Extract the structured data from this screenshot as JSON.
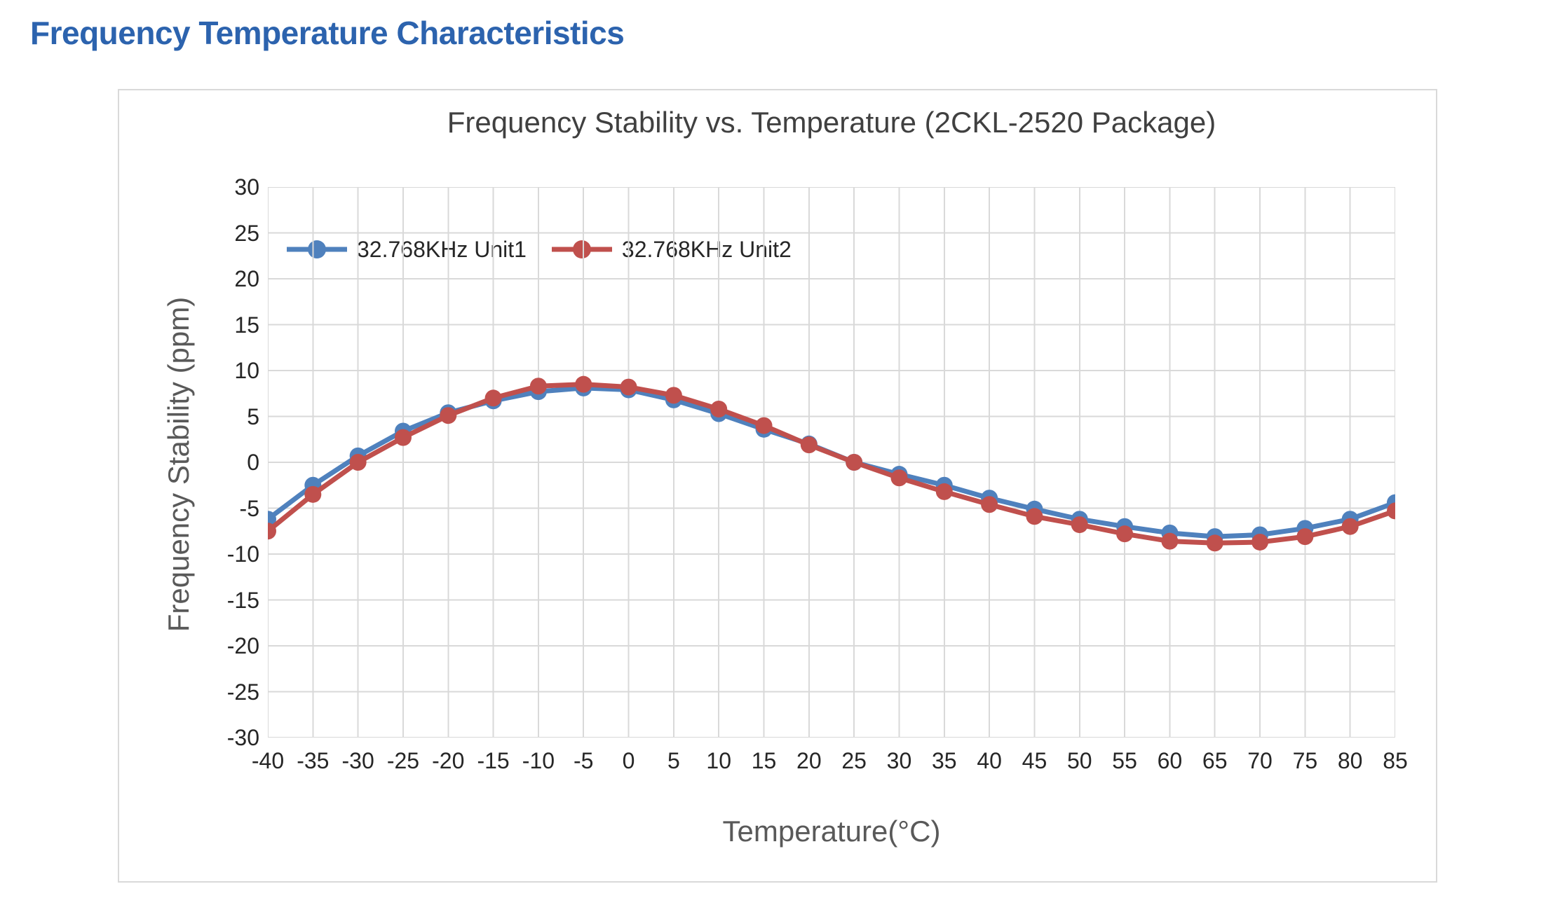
{
  "page": {
    "heading": "Frequency Temperature Characteristics"
  },
  "colors": {
    "heading": "#2C63AE",
    "card_border": "#D9D9D9",
    "grid": "#D9D9D9",
    "title_text": "#404040",
    "axis_title_text": "#595959",
    "tick_text": "#262626",
    "series_unit1": "#4F81BD",
    "series_unit2": "#C0504D"
  },
  "chart_data": {
    "type": "line",
    "title": "Frequency Stability vs. Temperature (2CKL-2520 Package)",
    "xlabel": "Temperature(°C)",
    "ylabel": "Frequency Stability (ppm)",
    "x": [
      -40,
      -35,
      -30,
      -25,
      -20,
      -15,
      -10,
      -5,
      0,
      5,
      10,
      15,
      20,
      25,
      30,
      35,
      40,
      45,
      50,
      55,
      60,
      65,
      70,
      75,
      80,
      85
    ],
    "xlim": [
      -40,
      85
    ],
    "ylim": [
      -30,
      30
    ],
    "ytick_step": 5,
    "grid": true,
    "legend_position": "inside-top-left",
    "marker": "circle",
    "series": [
      {
        "name": "32.768KHz Unit1",
        "color": "#4F81BD",
        "values": [
          -6.2,
          -2.5,
          0.7,
          3.4,
          5.4,
          6.7,
          7.7,
          8.1,
          7.9,
          6.8,
          5.3,
          3.6,
          2.0,
          0.0,
          -1.3,
          -2.5,
          -3.9,
          -5.1,
          -6.2,
          -7.0,
          -7.7,
          -8.1,
          -7.9,
          -7.2,
          -6.2,
          -4.4
        ]
      },
      {
        "name": "32.768KHz Unit2",
        "color": "#C0504D",
        "values": [
          -7.5,
          -3.5,
          0.0,
          2.7,
          5.1,
          7.0,
          8.3,
          8.5,
          8.2,
          7.3,
          5.8,
          4.0,
          1.9,
          0.0,
          -1.7,
          -3.2,
          -4.6,
          -5.9,
          -6.8,
          -7.8,
          -8.6,
          -8.8,
          -8.7,
          -8.1,
          -7.0,
          -5.3
        ]
      }
    ]
  }
}
